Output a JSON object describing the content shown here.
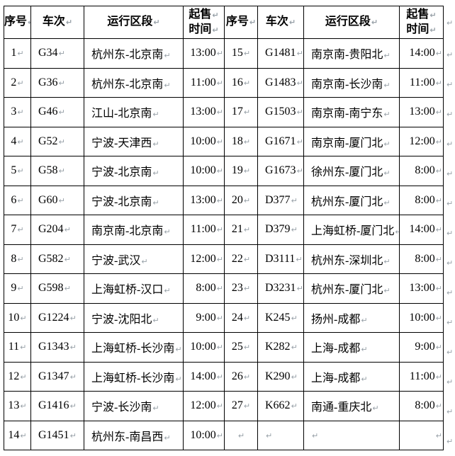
{
  "header": {
    "index": "序号",
    "train": "车次",
    "section": "运行区段",
    "sale_time_line1": "起售",
    "sale_time_line2": "时间"
  },
  "mark_glyph": "↵",
  "rows": [
    {
      "l": [
        "1",
        "G34",
        "杭州东-北京南",
        "13:00"
      ],
      "r": [
        "15",
        "G1481",
        "南京南-贵阳北",
        "14:00"
      ]
    },
    {
      "l": [
        "2",
        "G36",
        "杭州东-北京南",
        "11:00"
      ],
      "r": [
        "16",
        "G1483",
        "南京南-长沙南",
        "11:00"
      ]
    },
    {
      "l": [
        "3",
        "G46",
        "江山-北京南",
        "13:00"
      ],
      "r": [
        "17",
        "G1503",
        "南京南-南宁东",
        "13:00"
      ]
    },
    {
      "l": [
        "4",
        "G52",
        "宁波-天津西",
        "10:00"
      ],
      "r": [
        "18",
        "G1671",
        "南京南-厦门北",
        "12:00"
      ]
    },
    {
      "l": [
        "5",
        "G58",
        "宁波-北京南",
        "10:00"
      ],
      "r": [
        "19",
        "G1673",
        "徐州东-厦门北",
        "8:00"
      ]
    },
    {
      "l": [
        "6",
        "G60",
        "宁波-北京南",
        "13:00"
      ],
      "r": [
        "20",
        "D377",
        "杭州东-厦门北",
        "8:00"
      ]
    },
    {
      "l": [
        "7",
        "G204",
        "南京南-北京南",
        "11:00"
      ],
      "r": [
        "21",
        "D379",
        "上海虹桥-厦门北",
        "14:00"
      ]
    },
    {
      "l": [
        "8",
        "G582",
        "宁波-武汉",
        "12:00"
      ],
      "r": [
        "22",
        "D3111",
        "杭州东-深圳北",
        "8:00"
      ]
    },
    {
      "l": [
        "9",
        "G598",
        "上海虹桥-汉口",
        "8:00"
      ],
      "r": [
        "23",
        "D3231",
        "杭州东-厦门北",
        "13:00"
      ]
    },
    {
      "l": [
        "10",
        "G1224",
        "宁波-沈阳北",
        "9:00"
      ],
      "r": [
        "24",
        "K245",
        "扬州-成都",
        "10:00"
      ]
    },
    {
      "l": [
        "11",
        "G1343",
        "上海虹桥-长沙南",
        "10:00"
      ],
      "r": [
        "25",
        "K282",
        "上海-成都",
        "9:00"
      ]
    },
    {
      "l": [
        "12",
        "G1347",
        "上海虹桥-长沙南",
        "14:00"
      ],
      "r": [
        "26",
        "K290",
        "上海-成都",
        "11:00"
      ]
    },
    {
      "l": [
        "13",
        "G1416",
        "宁波-长沙南",
        "12:00"
      ],
      "r": [
        "27",
        "K662",
        "南通-重庆北",
        "8:00"
      ]
    },
    {
      "l": [
        "14",
        "G1451",
        "杭州东-南昌西",
        "10:00"
      ],
      "r": [
        "",
        "",
        "",
        ""
      ]
    }
  ],
  "colors": {
    "border": "#000000",
    "text": "#000000",
    "mark": "#98a1a8",
    "background": "#ffffff"
  }
}
